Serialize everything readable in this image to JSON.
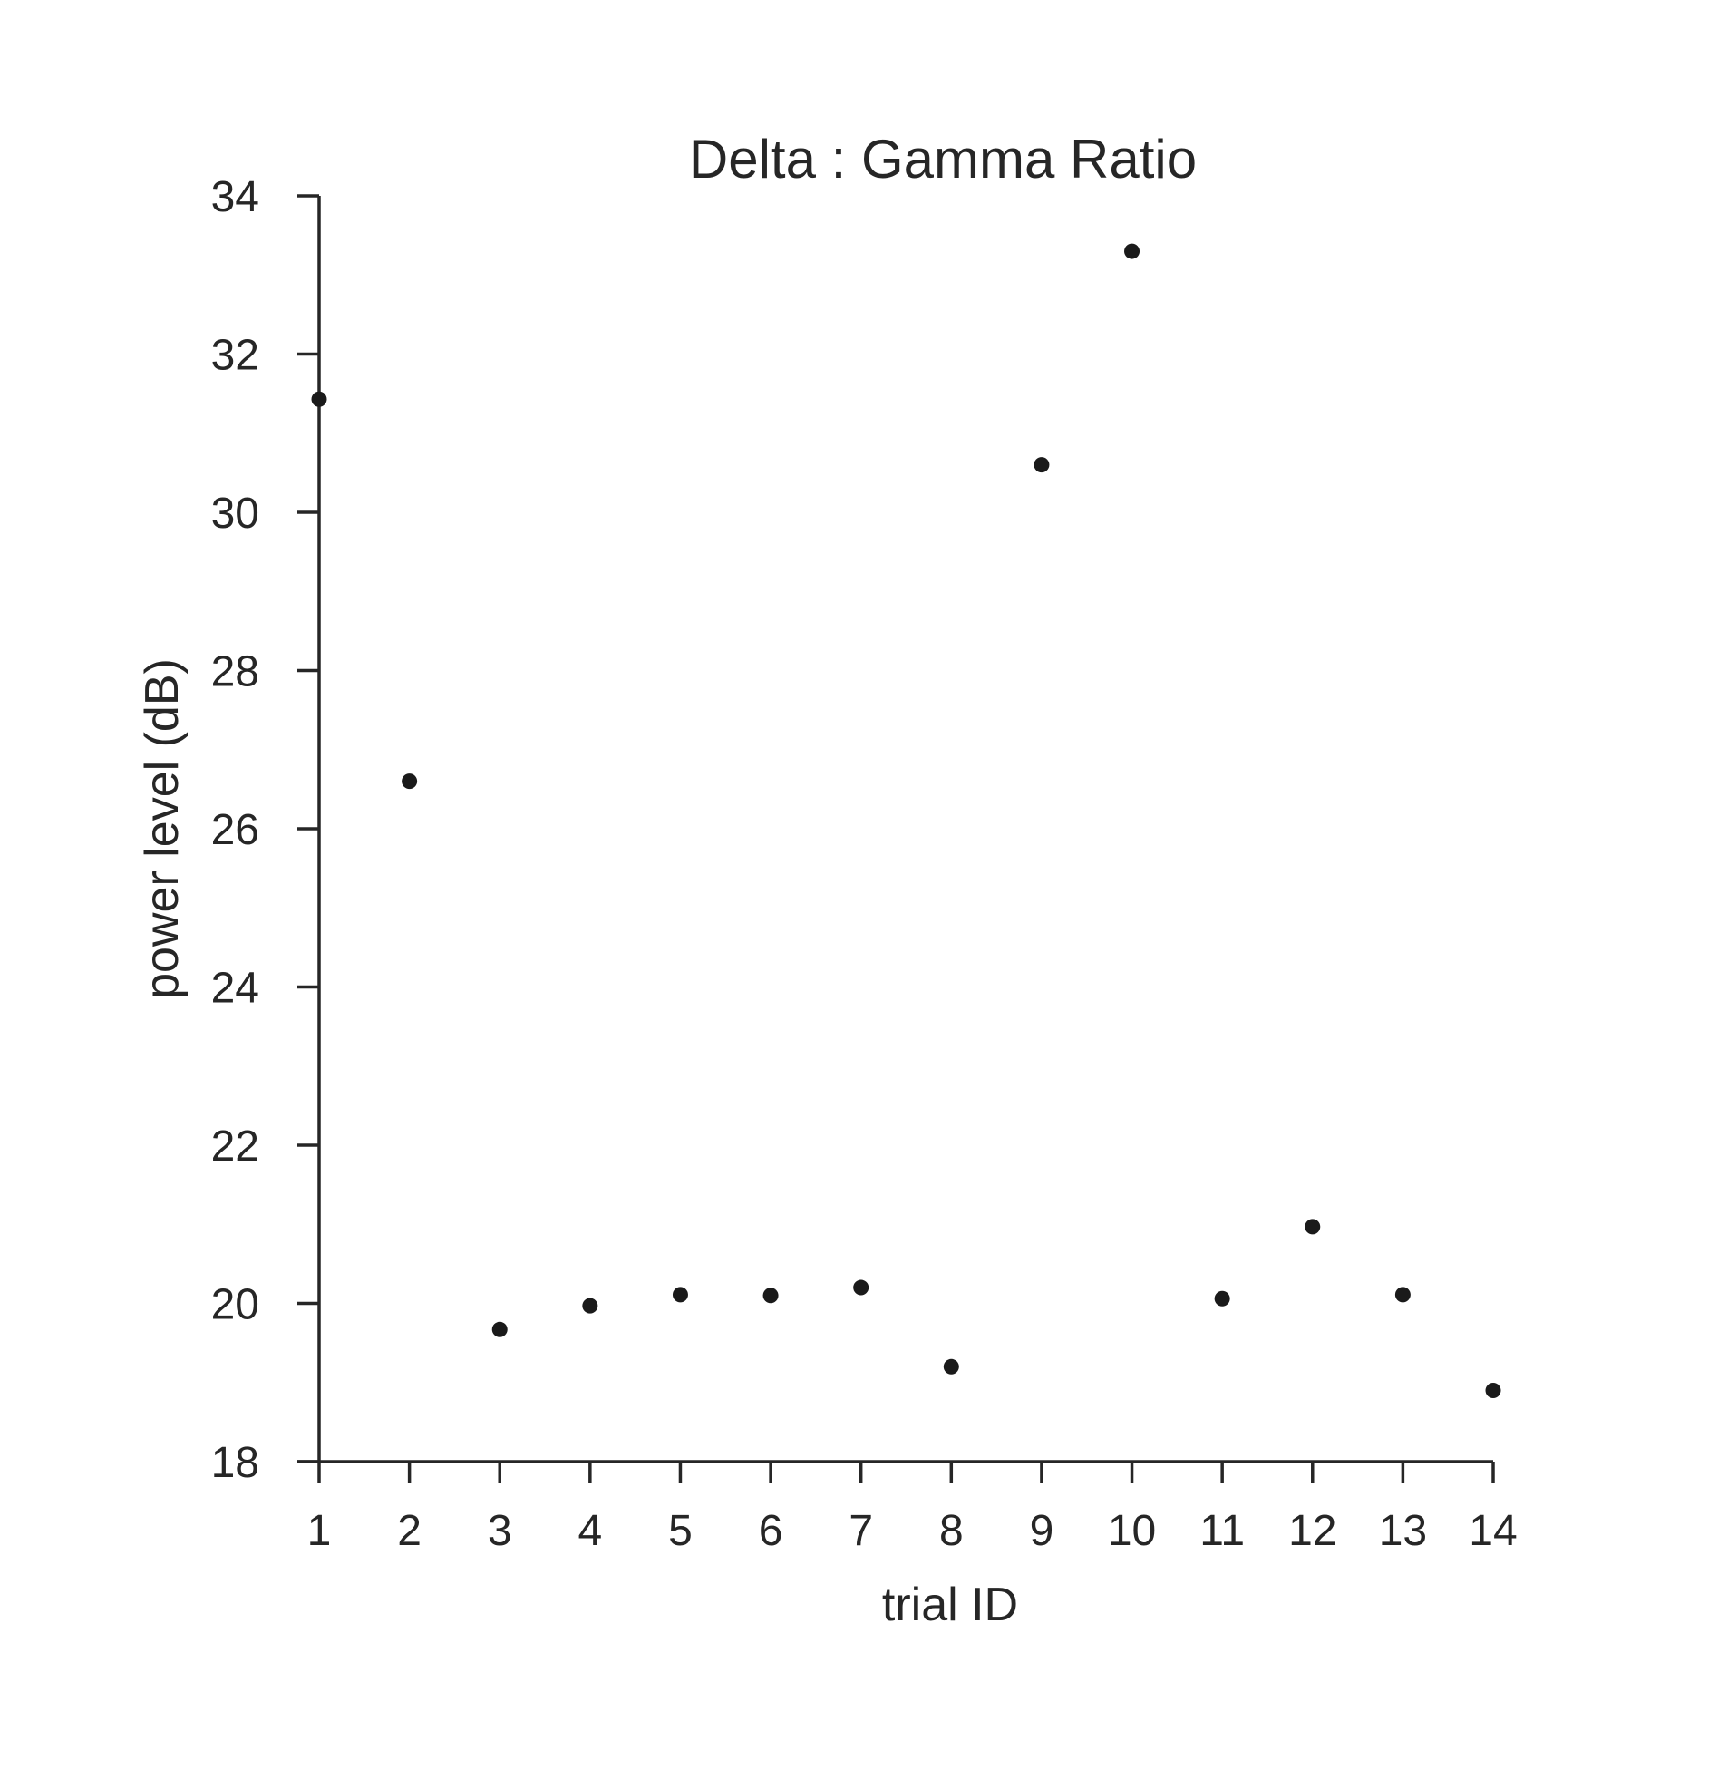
{
  "chart_data": {
    "type": "scatter",
    "title": "Delta : Gamma Ratio",
    "xlabel": "trial ID",
    "ylabel": "power level (dB)",
    "x": [
      1,
      2,
      3,
      4,
      5,
      6,
      7,
      8,
      9,
      10,
      11,
      12,
      13,
      14
    ],
    "y": [
      31.43,
      26.6,
      19.67,
      19.97,
      20.11,
      20.1,
      20.2,
      19.2,
      30.6,
      33.3,
      20.06,
      20.97,
      20.11,
      18.9
    ],
    "xlim": [
      1,
      14
    ],
    "ylim": [
      18,
      34
    ],
    "xticks": [
      "1",
      "2",
      "3",
      "4",
      "5",
      "6",
      "7",
      "8",
      "9",
      "10",
      "11",
      "12",
      "13",
      "14"
    ],
    "yticks": [
      "18",
      "20",
      "22",
      "24",
      "26",
      "28",
      "30",
      "32",
      "34"
    ],
    "grid": false,
    "legend": "none",
    "colors": {
      "axis": "#262626",
      "marker": "#1a1a1a",
      "background": "#ffffff"
    }
  }
}
